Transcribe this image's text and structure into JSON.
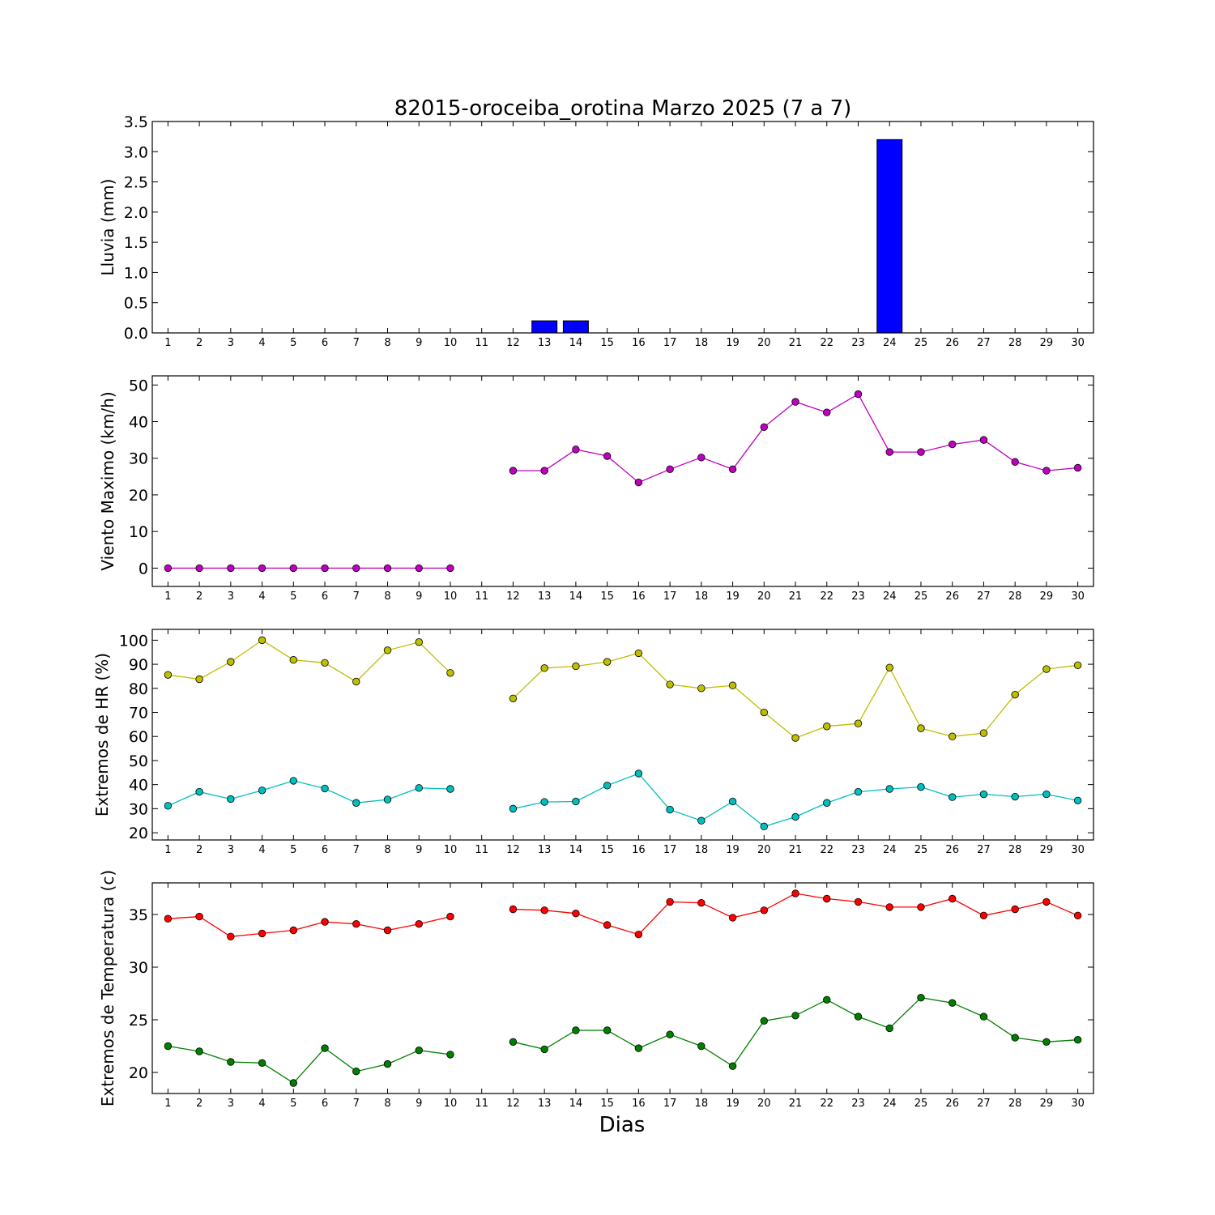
{
  "chart_data": {
    "type": "multi-panel",
    "title": "82015-oroceiba_orotina Marzo 2025  (7 a 7)",
    "xlabel": "Dias",
    "days": [
      1,
      2,
      3,
      4,
      5,
      6,
      7,
      8,
      9,
      10,
      11,
      12,
      13,
      14,
      15,
      16,
      17,
      18,
      19,
      20,
      21,
      22,
      23,
      24,
      25,
      26,
      27,
      28,
      29,
      30
    ],
    "panels": [
      {
        "type": "bar",
        "ylabel": "Lluvia (mm)",
        "ylim": [
          0,
          3.5
        ],
        "yticks": [
          0.0,
          0.5,
          1.0,
          1.5,
          2.0,
          2.5,
          3.0,
          3.5
        ],
        "ytick_labels": [
          "0.0",
          "0.5",
          "1.0",
          "1.5",
          "2.0",
          "2.5",
          "3.0",
          "3.5"
        ],
        "series": [
          {
            "color": "#0000ff",
            "values": [
              0,
              0,
              0,
              0,
              0,
              0,
              0,
              0,
              0,
              0,
              null,
              0,
              0.2,
              0.2,
              0,
              0,
              0,
              0,
              0,
              0,
              0,
              0,
              0,
              3.2,
              0,
              0,
              0,
              0,
              0,
              0
            ]
          }
        ]
      },
      {
        "type": "line",
        "ylabel": "Viento Maximo (km/h)",
        "ylim": [
          -5,
          52.5
        ],
        "yticks": [
          0,
          10,
          20,
          30,
          40,
          50
        ],
        "ytick_labels": [
          "0",
          "10",
          "20",
          "30",
          "40",
          "50"
        ],
        "series": [
          {
            "color": "#bf00bf",
            "values": [
              0,
              0,
              0,
              0,
              0,
              0,
              0,
              0,
              0,
              0,
              null,
              26.6,
              26.6,
              32.4,
              30.6,
              23.4,
              27.0,
              30.2,
              27.0,
              38.5,
              45.4,
              42.5,
              47.5,
              31.7,
              31.7,
              33.8,
              35.0,
              29.0,
              26.6,
              27.4
            ]
          }
        ]
      },
      {
        "type": "line",
        "ylabel": "Extremos de HR (%)",
        "ylim": [
          17,
          104.5
        ],
        "yticks": [
          20,
          30,
          40,
          50,
          60,
          70,
          80,
          90,
          100
        ],
        "ytick_labels": [
          "20",
          "30",
          "40",
          "50",
          "60",
          "70",
          "80",
          "90",
          "100"
        ],
        "series": [
          {
            "color": "#bfbf00",
            "values": [
              85.6,
              83.8,
              91.0,
              100.0,
              91.8,
              90.6,
              82.8,
              95.8,
              99.2,
              86.4,
              null,
              75.8,
              88.4,
              89.2,
              91.0,
              94.6,
              81.6,
              80.0,
              81.2,
              70.0,
              59.4,
              64.2,
              65.4,
              88.6,
              63.4,
              60.0,
              61.4,
              77.4,
              88.0,
              89.6
            ]
          },
          {
            "color": "#00bfbf",
            "values": [
              31.2,
              37.0,
              34.0,
              37.6,
              41.6,
              38.4,
              32.4,
              33.8,
              38.6,
              38.2,
              null,
              30.0,
              32.8,
              33.0,
              39.6,
              44.6,
              29.6,
              25.0,
              33.0,
              22.6,
              26.6,
              32.4,
              37.0,
              38.2,
              39.0,
              34.8,
              36.0,
              35.0,
              36.0,
              33.4
            ]
          }
        ]
      },
      {
        "type": "line",
        "ylabel": "Extremos de Temperatura (c)",
        "ylim": [
          18,
          38
        ],
        "yticks": [
          20,
          25,
          30,
          35
        ],
        "ytick_labels": [
          "20",
          "25",
          "30",
          "35"
        ],
        "series": [
          {
            "color": "#ff0000",
            "values": [
              34.6,
              34.8,
              32.9,
              33.2,
              33.5,
              34.3,
              34.1,
              33.5,
              34.1,
              34.8,
              null,
              35.5,
              35.4,
              35.1,
              34.0,
              33.1,
              36.2,
              36.1,
              34.7,
              35.4,
              37.0,
              36.5,
              36.2,
              35.7,
              35.7,
              36.5,
              34.9,
              35.5,
              36.2,
              34.9
            ]
          },
          {
            "color": "#007f00",
            "values": [
              22.5,
              22.0,
              21.0,
              20.9,
              19.0,
              22.3,
              20.1,
              20.8,
              22.1,
              21.7,
              null,
              22.9,
              22.2,
              24.0,
              24.0,
              22.3,
              23.6,
              22.5,
              20.6,
              24.9,
              25.4,
              26.9,
              25.3,
              24.2,
              27.1,
              26.6,
              25.3,
              23.3,
              22.9,
              23.1
            ]
          }
        ]
      }
    ]
  }
}
